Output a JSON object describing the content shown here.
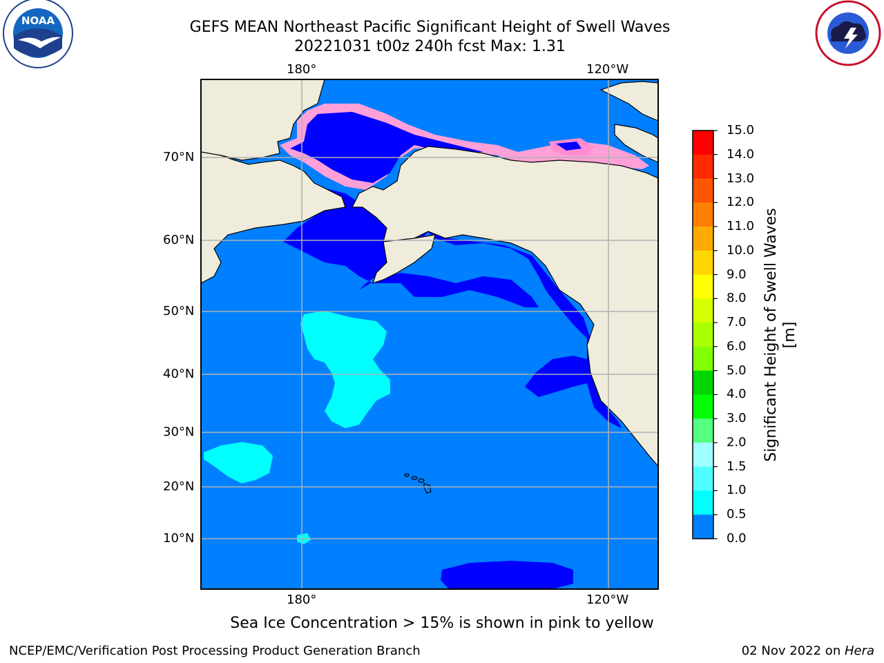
{
  "title": "GEFS MEAN Northeast Pacific Significant Height of Swell Waves",
  "subtitle": "20221031 t00z 240h fcst   Max: 1.31",
  "map": {
    "lon_top_labels": [
      "180°",
      "120°W"
    ],
    "lon_bottom_labels": [
      "180°",
      "120°W"
    ],
    "lat_labels": [
      "70°N",
      "60°N",
      "50°N",
      "40°N",
      "30°N",
      "20°N",
      "10°N"
    ]
  },
  "colorbar": {
    "label": "Significant Height of Swell Waves [m]",
    "ticks": [
      "15.0",
      "14.0",
      "13.0",
      "12.0",
      "11.0",
      "10.0",
      "9.0",
      "8.0",
      "7.0",
      "6.0",
      "5.0",
      "4.0",
      "3.0",
      "2.0",
      "1.5",
      "1.0",
      "0.5",
      "0.0"
    ],
    "colors": [
      "#ff0000",
      "#ff2a00",
      "#ff5500",
      "#ff8000",
      "#ffaa00",
      "#ffd500",
      "#ffff00",
      "#d5ff00",
      "#aaff00",
      "#80ff00",
      "#00d500",
      "#00ff00",
      "#55ff80",
      "#a0ffff",
      "#50ffff",
      "#00ffff",
      "#0080ff",
      "#0000ff"
    ]
  },
  "colors": {
    "land": "#efecdc",
    "ocean": "#0080ff",
    "ocean_low": "#0000ff",
    "swell_mid": "#00ffff",
    "ice": "#ff66cc",
    "ice_edge": "#ffa040"
  },
  "caption": "Sea Ice Concentration > 15% is shown in pink to yellow",
  "footer": {
    "left": "NCEP/EMC/Verification Post Processing Product Generation Branch",
    "right_date": "02 Nov 2022 on ",
    "right_host": "Hera"
  },
  "logos": {
    "noaa_text": "NOAA",
    "noaa_ring": "NATIONAL OCEANIC AND ATMOSPHERIC ADMINISTRATION",
    "noaa_ring_bottom": "U.S. DEPARTMENT OF COMMERCE",
    "nws_ring": "NATIONAL WEATHER SERVICE"
  }
}
